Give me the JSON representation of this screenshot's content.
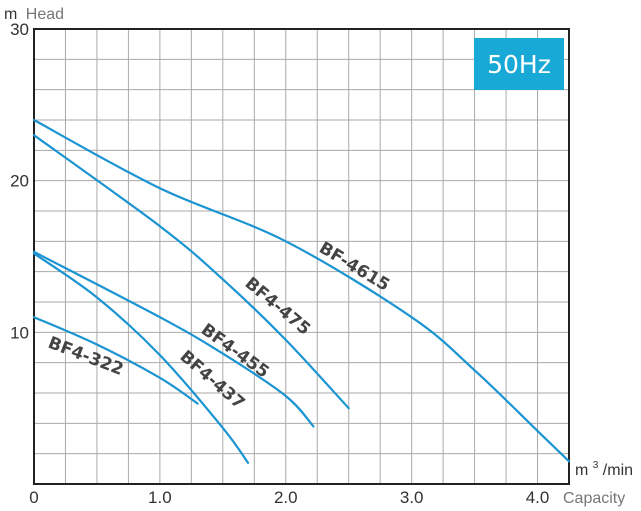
{
  "chart_data": {
    "type": "line",
    "badge": "50Hz",
    "colors": {
      "curve": "#1b94d2",
      "badge_bg": "#18a9d6",
      "grid": "#aaaaaa",
      "frame": "#222222"
    },
    "y_axis": {
      "unit": "m",
      "name": "Head",
      "range": [
        0,
        30
      ],
      "tick_labels": [
        "10",
        "20",
        "30"
      ]
    },
    "x_axis": {
      "unit_prefix": "m",
      "unit_exp": "3",
      "unit_suffix": "/min",
      "name": "Capacity",
      "range": [
        0,
        4.25
      ],
      "tick_labels": [
        "0",
        "1.0",
        "2.0",
        "3.0",
        "4.0"
      ]
    },
    "grid": true,
    "series": [
      {
        "name": "BF-4615",
        "x": [
          0,
          1.0,
          2.0,
          3.0,
          3.5,
          4.0,
          4.25
        ],
        "y": [
          24,
          19.5,
          16.0,
          11.0,
          7.5,
          3.5,
          1.5
        ]
      },
      {
        "name": "BF4-475",
        "x": [
          0,
          1.0,
          1.5,
          2.0,
          2.5
        ],
        "y": [
          23,
          17.0,
          13.5,
          9.5,
          5.0
        ]
      },
      {
        "name": "BF4-455",
        "x": [
          0,
          1.0,
          1.5,
          2.0,
          2.22
        ],
        "y": [
          15.3,
          11.0,
          8.6,
          5.8,
          3.8
        ]
      },
      {
        "name": "BF4-437",
        "x": [
          0,
          0.5,
          1.0,
          1.5,
          1.7
        ],
        "y": [
          15.2,
          12.3,
          8.5,
          3.7,
          1.4
        ]
      },
      {
        "name": "BF4-322",
        "x": [
          0,
          0.5,
          1.0,
          1.3
        ],
        "y": [
          11.0,
          9.2,
          7.0,
          5.3
        ]
      }
    ]
  }
}
